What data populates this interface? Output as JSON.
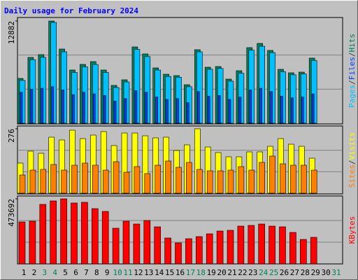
{
  "title": "Daily usage for February 2024",
  "chart_data": [
    {
      "type": "bar",
      "ylim": [
        0,
        12882
      ],
      "yticks": [
        12882
      ],
      "legend_separator": "/",
      "series": [
        {
          "name": "Hits",
          "color": "#00805c",
          "values": [
            5647,
            8294,
            8647,
            12882,
            9353,
            6706,
            7412,
            7765,
            6706,
            4765,
            5471,
            9617,
            8735,
            6971,
            6176,
            6000,
            4853,
            9265,
            7059,
            7147,
            5559,
            6618,
            9529,
            10059,
            9176,
            6794,
            6353,
            6441,
            8206,
            null,
            null
          ]
        },
        {
          "name": "Files",
          "color": "#0040ff",
          "values": [
            3900,
            4300,
            4400,
            4600,
            4200,
            3600,
            3900,
            3700,
            3500,
            2800,
            3100,
            4100,
            3900,
            3300,
            3000,
            3100,
            2600,
            4000,
            3400,
            3500,
            3000,
            3300,
            4200,
            4400,
            4000,
            3400,
            3200,
            3300,
            3700,
            null,
            null
          ]
        },
        {
          "name": "Pages",
          "color": "#00c0ff",
          "values": [
            5400,
            8000,
            8300,
            12700,
            9000,
            6400,
            7100,
            7400,
            6400,
            4500,
            5200,
            9300,
            8400,
            6700,
            5900,
            5800,
            4600,
            9000,
            6800,
            6900,
            5300,
            6300,
            9200,
            9700,
            8900,
            6500,
            6100,
            6200,
            7900,
            null,
            null
          ]
        }
      ]
    },
    {
      "type": "bar",
      "ylim": [
        0,
        276
      ],
      "yticks": [
        276
      ],
      "legend_separator": "/",
      "series": [
        {
          "name": "Visits",
          "color": "#ffff00",
          "values": [
            129,
            180,
            171,
            240,
            228,
            270,
            234,
            249,
            264,
            204,
            258,
            258,
            246,
            237,
            240,
            183,
            207,
            276,
            198,
            174,
            156,
            156,
            177,
            177,
            201,
            234,
            210,
            201,
            150,
            null,
            null
          ]
        },
        {
          "name": "Sites",
          "color": "#ff8000",
          "values": [
            78,
            99,
            102,
            123,
            99,
            120,
            129,
            120,
            99,
            135,
            90,
            114,
            84,
            120,
            138,
            111,
            132,
            102,
            96,
            96,
            99,
            114,
            99,
            132,
            159,
            126,
            120,
            120,
            99,
            null,
            null
          ]
        }
      ]
    },
    {
      "type": "bar",
      "ylim": [
        0,
        473692
      ],
      "yticks": [
        473692
      ],
      "categories": [
        "1",
        "2",
        "3",
        "4",
        "5",
        "6",
        "7",
        "8",
        "9",
        "10",
        "11",
        "12",
        "13",
        "14",
        "15",
        "16",
        "17",
        "18",
        "19",
        "20",
        "21",
        "22",
        "23",
        "24",
        "25",
        "26",
        "27",
        "28",
        "29",
        "30",
        "31"
      ],
      "category_colors": [
        "#000",
        "#000",
        "#00805c",
        "#00805c",
        "#000",
        "#000",
        "#000",
        "#000",
        "#000",
        "#00805c",
        "#00805c",
        "#000",
        "#000",
        "#000",
        "#000",
        "#000",
        "#00805c",
        "#00805c",
        "#000",
        "#000",
        "#000",
        "#000",
        "#000",
        "#00805c",
        "#00805c",
        "#000",
        "#000",
        "#000",
        "#000",
        "#000",
        "#00805c"
      ],
      "series": [
        {
          "name": "KBytes",
          "color": "#ff0000",
          "values": [
            305610,
            310703,
            432946,
            458412,
            473692,
            443133,
            448225,
            402380,
            382011,
            259766,
            310703,
            290328,
            315796,
            269955,
            188459,
            152804,
            183365,
            198645,
            219019,
            239393,
            244486,
            275046,
            280139,
            290328,
            275046,
            269955,
            229207,
            178271,
            193551,
            null,
            null
          ]
        }
      ]
    }
  ]
}
